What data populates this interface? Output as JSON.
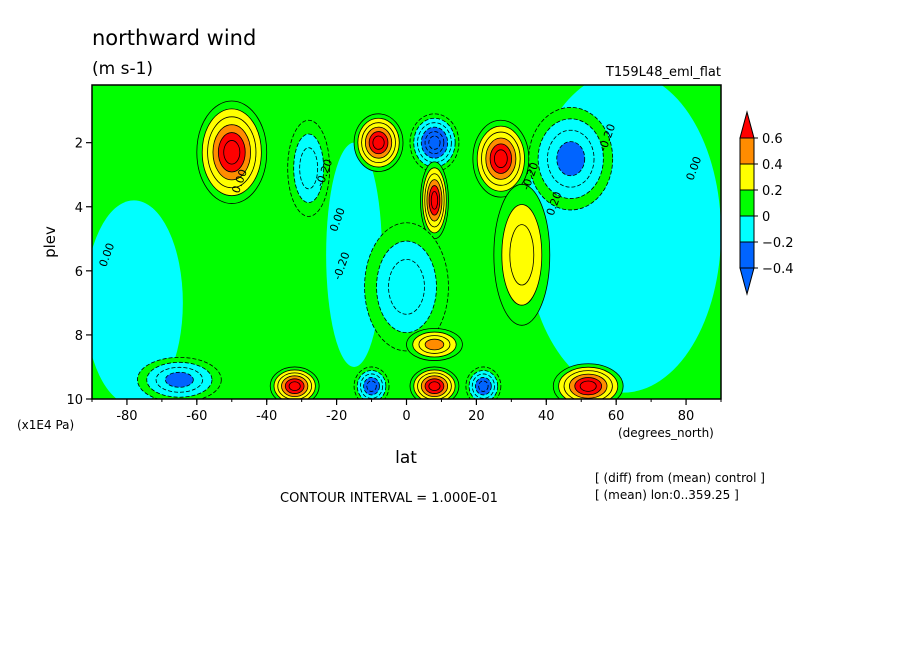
{
  "title": "northward wind",
  "units": "(m s-1)",
  "run_label": "T159L48_eml_flat",
  "contour_interval": "CONTOUR INTERVAL = 1.000E-01",
  "notes": [
    "[ (diff) from (mean) control ]",
    "[ (mean) lon:0..359.25 ]"
  ],
  "chart_data": {
    "type": "heatmap",
    "xlabel": "lat",
    "x_units": "(degrees_north)",
    "ylabel": "plev",
    "y_units": "(x1E4 Pa)",
    "xlim": [
      -90,
      90
    ],
    "ylim": [
      10,
      0.2
    ],
    "y_inverted": true,
    "x_ticks": [
      "-80",
      "-60",
      "-40",
      "-20",
      "0",
      "20",
      "40",
      "60",
      "80"
    ],
    "x_tick_values": [
      -80,
      -60,
      -40,
      -20,
      0,
      20,
      40,
      60,
      80
    ],
    "y_ticks": [
      "2",
      "4",
      "6",
      "8",
      "10"
    ],
    "y_tick_values": [
      2,
      4,
      6,
      8,
      10
    ],
    "colorbar": {
      "labels": [
        "0.6",
        "0.4",
        "0.2",
        "0",
        "−0.2",
        "−0.4"
      ],
      "colors": [
        "#ff0000",
        "#ff8c00",
        "#ffff00",
        "#00ff00",
        "#00ffff",
        "#0064ff",
        "#0000ff",
        "#e00000"
      ],
      "levels": [
        -0.4,
        -0.2,
        0,
        0.2,
        0.4,
        0.6
      ]
    },
    "contour_labels": [
      {
        "text": "0.00",
        "lat": -86,
        "p": 5.9
      },
      {
        "text": "0.00",
        "lat": -48,
        "p": 3.6
      },
      {
        "text": "-0.20",
        "lat": -24,
        "p": 3.4
      },
      {
        "text": "0.00",
        "lat": -20,
        "p": 4.8
      },
      {
        "text": "-0.20",
        "lat": -19,
        "p": 6.3
      },
      {
        "text": "-0.20",
        "lat": 35,
        "p": 3.5
      },
      {
        "text": "0.20",
        "lat": 42,
        "p": 4.3
      },
      {
        "text": "-0.20",
        "lat": 57,
        "p": 2.3
      },
      {
        "text": "0.00",
        "lat": 82,
        "p": 3.2
      }
    ],
    "features": [
      {
        "lat": -50,
        "p": 2.3,
        "value": 0.6,
        "rx": 10,
        "ry": 1.6
      },
      {
        "lat": -28,
        "p": 2.8,
        "value": -0.3,
        "rx": 6,
        "ry": 1.5
      },
      {
        "lat": -8,
        "p": 2.0,
        "value": 0.6,
        "rx": 7,
        "ry": 0.9
      },
      {
        "lat": 8,
        "p": 2.0,
        "value": -0.6,
        "rx": 7,
        "ry": 0.9
      },
      {
        "lat": 8,
        "p": 3.8,
        "value": 0.6,
        "rx": 4,
        "ry": 1.2
      },
      {
        "lat": 27,
        "p": 2.5,
        "value": 0.6,
        "rx": 8,
        "ry": 1.2
      },
      {
        "lat": 33,
        "p": 5.5,
        "value": 0.3,
        "rx": 8,
        "ry": 2.2
      },
      {
        "lat": 47,
        "p": 2.5,
        "value": -0.4,
        "rx": 12,
        "ry": 1.6
      },
      {
        "lat": 0,
        "p": 6.5,
        "value": -0.25,
        "rx": 12,
        "ry": 2.0
      },
      {
        "lat": -32,
        "p": 9.6,
        "value": 0.6,
        "rx": 7,
        "ry": 0.6
      },
      {
        "lat": -10,
        "p": 9.6,
        "value": -0.5,
        "rx": 5,
        "ry": 0.6
      },
      {
        "lat": 8,
        "p": 9.6,
        "value": 0.6,
        "rx": 7,
        "ry": 0.6
      },
      {
        "lat": 22,
        "p": 9.6,
        "value": -0.5,
        "rx": 5,
        "ry": 0.6
      },
      {
        "lat": 52,
        "p": 9.6,
        "value": 0.6,
        "rx": 10,
        "ry": 0.7
      },
      {
        "lat": -65,
        "p": 9.4,
        "value": -0.4,
        "rx": 12,
        "ry": 0.7
      },
      {
        "lat": 8,
        "p": 8.3,
        "value": 0.4,
        "rx": 8,
        "ry": 0.5
      }
    ]
  }
}
